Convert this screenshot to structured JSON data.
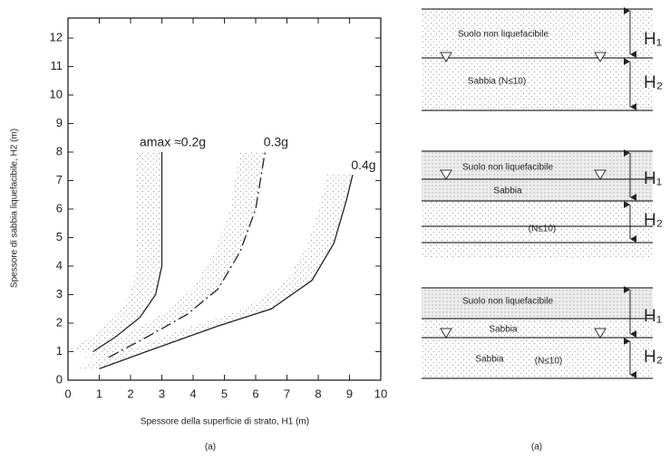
{
  "chart_data": {
    "type": "line",
    "xlabel": "Spessore della superficie di strato, H1 (m)",
    "ylabel": "Spessore di sabbia liquefacibile, H2 (m)",
    "caption": "(a)",
    "xlim": [
      0,
      10
    ],
    "ylim": [
      0,
      12.7
    ],
    "xticks": [
      0,
      1,
      2,
      3,
      4,
      5,
      6,
      7,
      8,
      9,
      10
    ],
    "yticks": [
      0,
      1,
      2,
      3,
      4,
      5,
      6,
      7,
      8,
      9,
      10,
      11,
      12
    ],
    "series": [
      {
        "name": "amax ≈0.2g",
        "color": "#222222",
        "line_style": "solid",
        "x": [
          0.8,
          1.5,
          2.3,
          2.8,
          3.0,
          3.0,
          3.0
        ],
        "values": [
          1.0,
          1.5,
          2.2,
          3.0,
          4.0,
          6.0,
          8.0
        ]
      },
      {
        "name": "0.3g",
        "color": "#222222",
        "line_style": "dashdot",
        "x": [
          1.3,
          2.5,
          3.8,
          4.8,
          5.5,
          6.0,
          6.3
        ],
        "values": [
          0.8,
          1.5,
          2.3,
          3.2,
          4.5,
          6.0,
          8.0
        ]
      },
      {
        "name": "0.4g",
        "color": "#222222",
        "line_style": "solid",
        "x": [
          1.0,
          2.5,
          4.8,
          6.5,
          7.8,
          8.5,
          8.9,
          9.1
        ],
        "values": [
          0.4,
          1.0,
          1.9,
          2.5,
          3.5,
          4.8,
          6.3,
          7.2
        ]
      }
    ]
  },
  "diagram": {
    "caption": "(a)",
    "profiles": [
      {
        "layers": [
          "Suolo non liquefacibile",
          "Sabbia (N≤10)"
        ],
        "h1": "H₁",
        "h2": "H₂"
      },
      {
        "layers": [
          "Suolo non liquefacibile",
          "Sabbia",
          "(N≤10)"
        ],
        "h1": "H₁",
        "h2": "H₂"
      },
      {
        "layers": [
          "Suolo non liquefacibile",
          "Sabbia",
          "Sabbia",
          "(N≤10)"
        ],
        "h1": "H₁",
        "h2": "H₂"
      }
    ]
  }
}
